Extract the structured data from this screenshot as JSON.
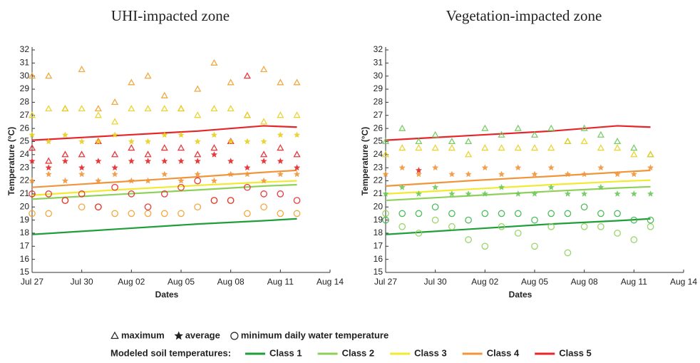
{
  "chart_data": [
    {
      "type": "scatter",
      "title": "UHI-impacted zone",
      "xlabel": "Dates",
      "ylabel": "Temperature (°C)",
      "xlim": [
        "Jul 27",
        "Aug 14"
      ],
      "xticks": [
        "Jul 27",
        "Jul 30",
        "Aug 02",
        "Aug 05",
        "Aug 08",
        "Aug 11",
        "Aug 14"
      ],
      "ylim": [
        15,
        32
      ],
      "yticks": [
        15,
        16,
        17,
        18,
        19,
        20,
        21,
        22,
        23,
        24,
        25,
        26,
        27,
        28,
        29,
        30,
        31,
        32
      ],
      "series": [
        {
          "type": "line",
          "color": "#1f9e3a",
          "x": [
            "Jul 27",
            "Aug 01",
            "Aug 06",
            "Aug 10",
            "Aug 12"
          ],
          "values": [
            17.9,
            18.3,
            18.7,
            18.95,
            19.1
          ]
        },
        {
          "type": "line",
          "color": "#8ed15a",
          "x": [
            "Jul 27",
            "Aug 01",
            "Aug 06",
            "Aug 10",
            "Aug 12"
          ],
          "values": [
            20.6,
            20.95,
            21.3,
            21.6,
            21.7
          ]
        },
        {
          "type": "line",
          "color": "#f2ea2e",
          "x": [
            "Jul 27",
            "Aug 01",
            "Aug 06",
            "Aug 10",
            "Aug 12"
          ],
          "values": [
            20.9,
            21.3,
            21.65,
            21.9,
            22.0
          ]
        },
        {
          "type": "line",
          "color": "#f0953a",
          "x": [
            "Jul 27",
            "Aug 01",
            "Aug 06",
            "Aug 10",
            "Aug 12"
          ],
          "values": [
            21.5,
            21.9,
            22.3,
            22.65,
            22.8
          ]
        },
        {
          "type": "line",
          "color": "#e4262a",
          "x": [
            "Jul 27",
            "Aug 01",
            "Aug 06",
            "Aug 10",
            "Aug 12"
          ],
          "values": [
            25.1,
            25.45,
            25.8,
            26.2,
            26.1
          ]
        },
        {
          "type": "scatter",
          "marker": "triangle",
          "color": "#f0a030",
          "x": [
            "Jul 27",
            "Jul 28",
            "Jul 29",
            "Jul 30",
            "Jul 31",
            "Aug 01",
            "Aug 02",
            "Aug 03",
            "Aug 04",
            "Aug 05",
            "Aug 06",
            "Aug 07",
            "Aug 08",
            "Aug 09",
            "Aug 10",
            "Aug 11",
            "Aug 12"
          ],
          "values": [
            30,
            30,
            27.5,
            30.5,
            27.5,
            28,
            29.5,
            30,
            28.5,
            27.5,
            29,
            31,
            29.5,
            27,
            30.5,
            29.5,
            29.5
          ]
        },
        {
          "type": "scatter",
          "marker": "triangle",
          "color": "#e8d020",
          "x": [
            "Jul 27",
            "Jul 28",
            "Jul 29",
            "Jul 30",
            "Jul 31",
            "Aug 01",
            "Aug 02",
            "Aug 03",
            "Aug 04",
            "Aug 05",
            "Aug 06",
            "Aug 07",
            "Aug 08",
            "Aug 09",
            "Aug 10",
            "Aug 11",
            "Aug 12"
          ],
          "values": [
            27,
            27.5,
            27.5,
            27.5,
            27,
            26.5,
            27.5,
            27.5,
            27.5,
            27.5,
            27,
            27.5,
            27.5,
            27,
            26.5,
            27,
            27
          ]
        },
        {
          "type": "scatter",
          "marker": "triangle",
          "color": "#e4262a",
          "x": [
            "Jul 27",
            "Jul 28",
            "Jul 29",
            "Jul 30",
            "Jul 31",
            "Aug 01",
            "Aug 02",
            "Aug 03",
            "Aug 04",
            "Aug 05",
            "Aug 06",
            "Aug 07",
            "Aug 08",
            "Aug 09",
            "Aug 10",
            "Aug 11",
            "Aug 12"
          ],
          "values": [
            24.5,
            23.5,
            24,
            24,
            25,
            24,
            24.5,
            24,
            24.5,
            24.5,
            24,
            24.5,
            25,
            30,
            24,
            24.5,
            24
          ]
        },
        {
          "type": "scatter",
          "marker": "star",
          "color": "#e8d020",
          "x": [
            "Jul 27",
            "Jul 28",
            "Jul 29",
            "Jul 30",
            "Jul 31",
            "Aug 01",
            "Aug 02",
            "Aug 03",
            "Aug 04",
            "Aug 05",
            "Aug 06",
            "Aug 07",
            "Aug 08",
            "Aug 09",
            "Aug 10",
            "Aug 11",
            "Aug 12"
          ],
          "values": [
            25.5,
            25,
            25.5,
            25,
            25,
            25.5,
            25,
            25,
            25.5,
            25.5,
            25,
            25.5,
            25,
            25,
            25,
            25.5,
            25.5
          ]
        },
        {
          "type": "scatter",
          "marker": "star",
          "color": "#f0953a",
          "x": [
            "Jul 27",
            "Jul 28",
            "Jul 29",
            "Jul 30",
            "Jul 31",
            "Aug 01",
            "Aug 02",
            "Aug 03",
            "Aug 04",
            "Aug 05",
            "Aug 06",
            "Aug 07",
            "Aug 08",
            "Aug 09",
            "Aug 10",
            "Aug 11",
            "Aug 12"
          ],
          "values": [
            22,
            22.5,
            22,
            22.5,
            22,
            22.5,
            22,
            22,
            22.5,
            22,
            22.5,
            22,
            22.5,
            22.5,
            22,
            22.5,
            22.5
          ]
        },
        {
          "type": "scatter",
          "marker": "star",
          "color": "#e4262a",
          "x": [
            "Jul 27",
            "Jul 28",
            "Jul 29",
            "Jul 30",
            "Jul 31",
            "Aug 01",
            "Aug 02",
            "Aug 03",
            "Aug 04",
            "Aug 05",
            "Aug 06",
            "Aug 07",
            "Aug 08",
            "Aug 09",
            "Aug 10",
            "Aug 11",
            "Aug 12"
          ],
          "values": [
            23.5,
            23,
            23.5,
            23,
            23.5,
            23,
            23.5,
            23.5,
            23.5,
            23.5,
            23.5,
            24,
            23.5,
            23,
            23.5,
            23.5,
            23
          ]
        },
        {
          "type": "scatter",
          "marker": "circle",
          "color": "#f0a030",
          "x": [
            "Jul 27",
            "Jul 28",
            "Jul 29",
            "Jul 30",
            "Jul 31",
            "Aug 01",
            "Aug 02",
            "Aug 03",
            "Aug 04",
            "Aug 05",
            "Aug 06",
            "Aug 07",
            "Aug 08",
            "Aug 09",
            "Aug 10",
            "Aug 11",
            "Aug 12"
          ],
          "values": [
            19.5,
            19.5,
            20.5,
            20,
            20,
            19.5,
            19.5,
            19.5,
            19.5,
            19.5,
            20,
            20.5,
            20.5,
            19.5,
            20,
            19.5,
            19.5
          ]
        },
        {
          "type": "scatter",
          "marker": "circle",
          "color": "#e4262a",
          "x": [
            "Jul 27",
            "Jul 28",
            "Jul 29",
            "Jul 30",
            "Jul 31",
            "Aug 01",
            "Aug 02",
            "Aug 03",
            "Aug 04",
            "Aug 05",
            "Aug 06",
            "Aug 07",
            "Aug 08",
            "Aug 09",
            "Aug 10",
            "Aug 11",
            "Aug 12"
          ],
          "values": [
            21,
            21,
            20.5,
            21,
            20,
            21.5,
            21,
            20,
            21,
            21.5,
            22,
            20.5,
            20.5,
            21.5,
            21,
            21,
            20.5
          ]
        }
      ]
    },
    {
      "type": "scatter",
      "title": "Vegetation-impacted zone",
      "xlabel": "Dates",
      "ylabel": "Temperature (°C)",
      "xlim": [
        "Jul 27",
        "Aug 14"
      ],
      "xticks": [
        "Jul 27",
        "Jul 30",
        "Aug 02",
        "Aug 05",
        "Aug 08",
        "Aug 11",
        "Aug 14"
      ],
      "ylim": [
        15,
        32
      ],
      "yticks": [
        15,
        16,
        17,
        18,
        19,
        20,
        21,
        22,
        23,
        24,
        25,
        26,
        27,
        28,
        29,
        30,
        31,
        32
      ],
      "series": [
        {
          "type": "line",
          "color": "#1f9e3a",
          "x": [
            "Jul 27",
            "Aug 01",
            "Aug 06",
            "Aug 10",
            "Aug 12"
          ],
          "values": [
            17.9,
            18.3,
            18.7,
            18.95,
            19.1
          ]
        },
        {
          "type": "line",
          "color": "#8ed15a",
          "x": [
            "Jul 27",
            "Aug 01",
            "Aug 06",
            "Aug 10",
            "Aug 12"
          ],
          "values": [
            20.5,
            20.85,
            21.2,
            21.45,
            21.55
          ]
        },
        {
          "type": "line",
          "color": "#f2ea2e",
          "x": [
            "Jul 27",
            "Aug 01",
            "Aug 06",
            "Aug 10",
            "Aug 12"
          ],
          "values": [
            21.0,
            21.35,
            21.7,
            21.95,
            22.05
          ]
        },
        {
          "type": "line",
          "color": "#f0953a",
          "x": [
            "Jul 27",
            "Aug 01",
            "Aug 06",
            "Aug 10",
            "Aug 12"
          ],
          "values": [
            21.6,
            22.0,
            22.35,
            22.65,
            22.8
          ]
        },
        {
          "type": "line",
          "color": "#e4262a",
          "x": [
            "Jul 27",
            "Aug 01",
            "Aug 06",
            "Aug 10",
            "Aug 12"
          ],
          "values": [
            25.1,
            25.45,
            25.8,
            26.2,
            26.1
          ]
        },
        {
          "type": "scatter",
          "marker": "triangle",
          "color": "#6cc85a",
          "x": [
            "Jul 27",
            "Jul 28",
            "Jul 29",
            "Jul 30",
            "Jul 31",
            "Aug 01",
            "Aug 02",
            "Aug 03",
            "Aug 04",
            "Aug 05",
            "Aug 06",
            "Aug 07",
            "Aug 08",
            "Aug 09",
            "Aug 10",
            "Aug 11",
            "Aug 12"
          ],
          "values": [
            25,
            26,
            25,
            25.5,
            25,
            25,
            26,
            25.5,
            26,
            25.5,
            26,
            25,
            26,
            25.5,
            25,
            24.5,
            24
          ]
        },
        {
          "type": "scatter",
          "marker": "triangle",
          "color": "#e8d020",
          "x": [
            "Jul 27",
            "Jul 28",
            "Jul 29",
            "Jul 30",
            "Jul 31",
            "Aug 01",
            "Aug 02",
            "Aug 03",
            "Aug 04",
            "Aug 05",
            "Aug 06",
            "Aug 07",
            "Aug 08",
            "Aug 09",
            "Aug 10",
            "Aug 11",
            "Aug 12"
          ],
          "values": [
            24,
            24.5,
            24.5,
            24.5,
            24.5,
            24,
            24.5,
            24.5,
            24.5,
            24.5,
            24.5,
            25,
            25,
            24.5,
            24.5,
            24,
            24
          ]
        },
        {
          "type": "scatter",
          "marker": "star",
          "color": "#f0953a",
          "x": [
            "Jul 27",
            "Jul 28",
            "Jul 29",
            "Jul 30",
            "Jul 31",
            "Aug 01",
            "Aug 02",
            "Aug 03",
            "Aug 04",
            "Aug 05",
            "Aug 06",
            "Aug 07",
            "Aug 08",
            "Aug 09",
            "Aug 10",
            "Aug 11",
            "Aug 12"
          ],
          "values": [
            22.5,
            23,
            22.5,
            23,
            22.5,
            22.5,
            23,
            22.5,
            23,
            22.5,
            23,
            22.5,
            22.5,
            23,
            22.5,
            22.5,
            23
          ]
        },
        {
          "type": "scatter",
          "marker": "star",
          "color": "#6cc85a",
          "x": [
            "Jul 27",
            "Jul 28",
            "Jul 29",
            "Jul 30",
            "Jul 31",
            "Aug 01",
            "Aug 02",
            "Aug 03",
            "Aug 04",
            "Aug 05",
            "Aug 06",
            "Aug 07",
            "Aug 08",
            "Aug 09",
            "Aug 10",
            "Aug 11",
            "Aug 12"
          ],
          "values": [
            21,
            21.5,
            21,
            21.5,
            21,
            21,
            21,
            21.5,
            21,
            21,
            21.5,
            21,
            21,
            21.5,
            21,
            21,
            21
          ]
        },
        {
          "type": "scatter",
          "marker": "star",
          "color": "#e4262a",
          "x": [
            "Jul 29"
          ],
          "values": [
            22.8
          ]
        },
        {
          "type": "scatter",
          "marker": "circle",
          "color": "#8ed15a",
          "x": [
            "Jul 27",
            "Jul 28",
            "Jul 29",
            "Jul 30",
            "Jul 31",
            "Aug 01",
            "Aug 02",
            "Aug 03",
            "Aug 04",
            "Aug 05",
            "Aug 06",
            "Aug 07",
            "Aug 08",
            "Aug 09",
            "Aug 10",
            "Aug 11",
            "Aug 12"
          ],
          "values": [
            19.5,
            18.5,
            18,
            19,
            18.5,
            17.5,
            17,
            18.5,
            18,
            17,
            18.5,
            16.5,
            18.5,
            18.5,
            18,
            17.5,
            18.5
          ]
        },
        {
          "type": "scatter",
          "marker": "circle",
          "color": "#3cb54a",
          "x": [
            "Jul 27",
            "Jul 28",
            "Jul 29",
            "Jul 30",
            "Jul 31",
            "Aug 01",
            "Aug 02",
            "Aug 03",
            "Aug 04",
            "Aug 05",
            "Aug 06",
            "Aug 07",
            "Aug 08",
            "Aug 09",
            "Aug 10",
            "Aug 11",
            "Aug 12"
          ],
          "values": [
            19,
            19.5,
            19.5,
            20,
            19.5,
            19,
            19.5,
            19.5,
            19.5,
            19,
            19.5,
            19.5,
            20,
            19.5,
            19.5,
            19,
            19
          ]
        }
      ]
    }
  ],
  "legend": {
    "markers": [
      {
        "symbol": "triangle",
        "label": "maximum"
      },
      {
        "symbol": "star",
        "label": "average"
      },
      {
        "symbol": "circle",
        "label": "minimum daily water temperature"
      }
    ],
    "title": "Modeled soil temperatures:",
    "classes": [
      {
        "name": "Class 1",
        "color": "#1f9e3a"
      },
      {
        "name": "Class 2",
        "color": "#8ed15a"
      },
      {
        "name": "Class 3",
        "color": "#f2ea2e"
      },
      {
        "name": "Class 4",
        "color": "#f0953a"
      },
      {
        "name": "Class 5",
        "color": "#e4262a"
      }
    ]
  }
}
